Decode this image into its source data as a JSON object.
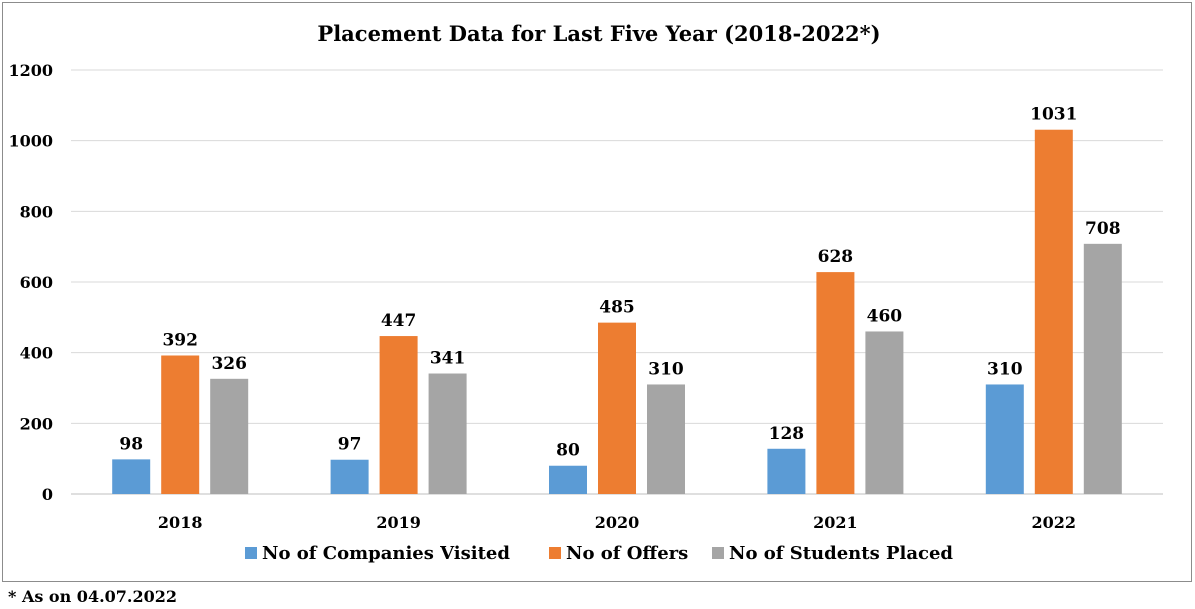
{
  "chart_data": {
    "type": "bar",
    "title": "Placement Data for Last Five Year (2018-2022*)",
    "categories": [
      "2018",
      "2019",
      "2020",
      "2021",
      "2022"
    ],
    "series": [
      {
        "name": "No of Companies Visited",
        "color": "#5b9bd5",
        "values": [
          98,
          97,
          80,
          128,
          310
        ]
      },
      {
        "name": "No of Offers",
        "color": "#ed7d31",
        "values": [
          392,
          447,
          485,
          628,
          1031
        ]
      },
      {
        "name": "No of Students Placed",
        "color": "#a5a5a5",
        "values": [
          326,
          341,
          310,
          460,
          708
        ]
      }
    ],
    "ylim": [
      0,
      1200
    ],
    "yticks": [
      0,
      200,
      400,
      600,
      800,
      1000,
      1200
    ],
    "grid": true,
    "legend": "bottom",
    "data_labels": true
  },
  "footnote": "* As on 04.07.2022"
}
